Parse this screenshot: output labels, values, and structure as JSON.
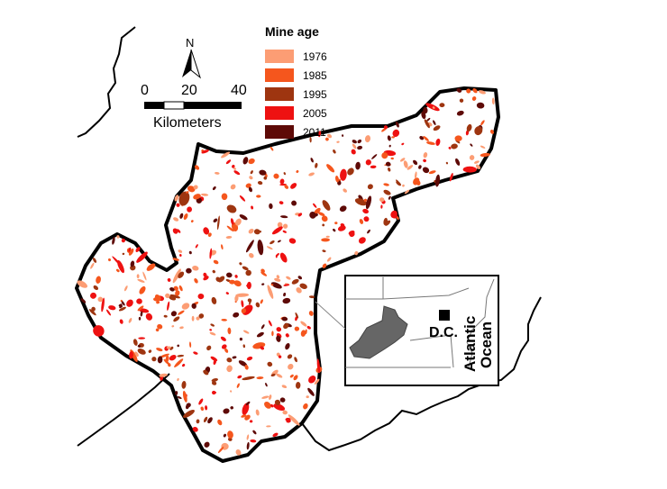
{
  "legend": {
    "title": "Mine age",
    "items": [
      {
        "label": "1976",
        "color": "#fc9d74"
      },
      {
        "label": "1985",
        "color": "#f5561d"
      },
      {
        "label": "1995",
        "color": "#9e3510"
      },
      {
        "label": "2005",
        "color": "#ee1111"
      },
      {
        "label": "2011",
        "color": "#5e0a07"
      }
    ]
  },
  "scale_bar": {
    "ticks": [
      "0",
      "20",
      "40"
    ],
    "unit": "Kilometers"
  },
  "north_arrow": {
    "label": "N",
    "icon": "north-arrow-icon"
  },
  "inset": {
    "city_label": "D.C.",
    "ocean_label_line1": "Atlantic",
    "ocean_label_line2": "Ocean",
    "state_fill": "#666666"
  },
  "colors": {
    "boundary": "#000000",
    "background": "#ffffff"
  }
}
